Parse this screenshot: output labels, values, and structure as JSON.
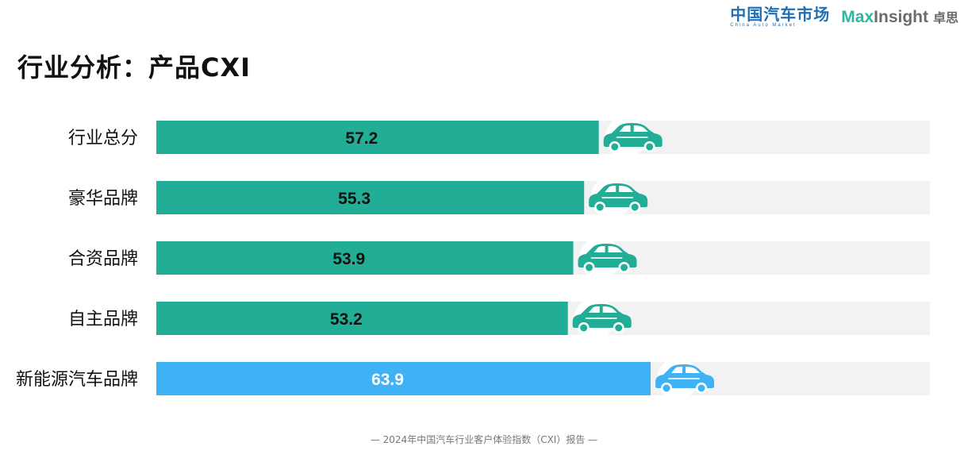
{
  "header": {
    "logo_cam_zh": "中国汽车市场",
    "logo_cam_en": "China Auto Market",
    "logo_max": "Max",
    "logo_insight": "Insight",
    "logo_zhuosi": "卓思"
  },
  "colors": {
    "teal": "#22ae96",
    "blue": "#3fb2f6",
    "track": "#f2f2f2"
  },
  "chart_data": {
    "type": "bar",
    "title": "行业分析：产品CXI",
    "categories": [
      "行业总分",
      "豪华品牌",
      "合资品牌",
      "自主品牌",
      "新能源汽车品牌"
    ],
    "values": [
      57.2,
      55.3,
      53.9,
      53.2,
      63.9
    ],
    "value_labels": [
      "57.2",
      "55.3",
      "53.9",
      "53.2",
      "63.9"
    ],
    "highlight": [
      false,
      false,
      false,
      false,
      true
    ],
    "xlim": [
      0,
      100
    ],
    "xlabel": "",
    "ylabel": "",
    "grid": false,
    "legend": "none"
  },
  "footer": {
    "text": "— 2024年中国汽车行业客户体验指数（CXI）报告 —"
  }
}
